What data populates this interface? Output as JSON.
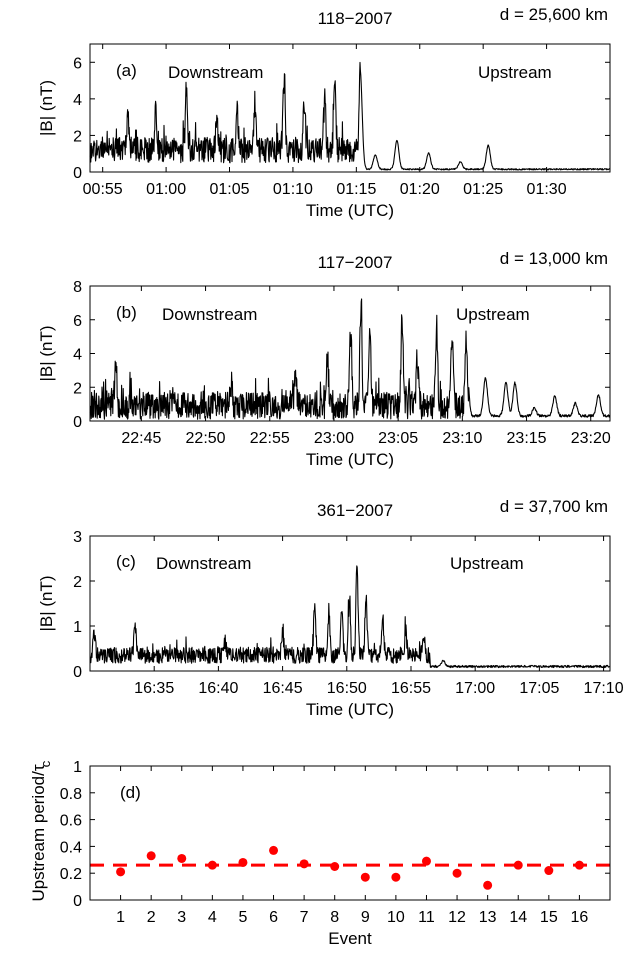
{
  "chart_data": [
    {
      "type": "line",
      "panel": "(a)",
      "title": "118−2007",
      "distance": "d = 25,600 km",
      "region_labels": [
        "Downstream",
        "Upstream"
      ],
      "xlabel": "Time (UTC)",
      "ylabel": "|B| (nT)",
      "xlim_minutes": [
        54.0,
        95.0
      ],
      "ylim": [
        0,
        7
      ],
      "yticks": [
        0,
        2,
        4,
        6
      ],
      "xtick_values": [
        55,
        60,
        65,
        70,
        75,
        80,
        85,
        90
      ],
      "xtick_labels": [
        "00:55",
        "01:00",
        "01:05",
        "01:10",
        "01:15",
        "01:20",
        "01:25",
        "01:30"
      ],
      "transition_minute": 75.3,
      "downstream_level": 1.2,
      "downstream_noise": 0.7,
      "upstream_base": 0.15,
      "peaks": [
        [
          57.0,
          2.6
        ],
        [
          59.2,
          2.9
        ],
        [
          61.6,
          4.3
        ],
        [
          64.0,
          2.7
        ],
        [
          65.6,
          3.3
        ],
        [
          67.0,
          3.5
        ],
        [
          69.3,
          5.3
        ],
        [
          70.9,
          3.3
        ],
        [
          72.5,
          3.9
        ],
        [
          73.3,
          4.8
        ],
        [
          75.3,
          6.0
        ],
        [
          76.5,
          1.4
        ],
        [
          78.2,
          2.2
        ],
        [
          80.7,
          1.5
        ],
        [
          83.2,
          1.0
        ],
        [
          85.4,
          1.9
        ]
      ],
      "seed": 11
    },
    {
      "type": "line",
      "panel": "(b)",
      "title": "117−2007",
      "distance": "d = 13,000 km",
      "region_labels": [
        "Downstream",
        "Upstream"
      ],
      "xlabel": "Time (UTC)",
      "ylabel": "|B| (nT)",
      "xlim_minutes": [
        1361.0,
        1401.5
      ],
      "ylim": [
        0,
        8
      ],
      "yticks": [
        0,
        2,
        4,
        6,
        8
      ],
      "xtick_values": [
        1365,
        1370,
        1375,
        1380,
        1385,
        1390,
        1395,
        1400
      ],
      "xtick_labels": [
        "22:45",
        "22:50",
        "22:55",
        "23:00",
        "23:05",
        "23:10",
        "23:15",
        "23:20"
      ],
      "transition_minute": 1390.5,
      "downstream_level": 0.9,
      "downstream_noise": 0.8,
      "upstream_base": 0.3,
      "peaks": [
        [
          1363.0,
          3.2
        ],
        [
          1372.0,
          2.0
        ],
        [
          1377.0,
          2.6
        ],
        [
          1379.5,
          3.5
        ],
        [
          1381.3,
          5.7
        ],
        [
          1382.1,
          7.6
        ],
        [
          1382.8,
          4.8
        ],
        [
          1385.3,
          6.3
        ],
        [
          1386.5,
          3.6
        ],
        [
          1388.0,
          5.4
        ],
        [
          1389.2,
          4.9
        ],
        [
          1390.3,
          4.5
        ],
        [
          1391.8,
          2.7
        ],
        [
          1393.4,
          2.4
        ],
        [
          1394.1,
          2.4
        ],
        [
          1395.6,
          0.9
        ],
        [
          1397.2,
          1.6
        ],
        [
          1398.8,
          1.2
        ],
        [
          1400.6,
          1.7
        ]
      ],
      "seed": 23
    },
    {
      "type": "line",
      "panel": "(c)",
      "title": "361−2007",
      "distance": "d = 37,700 km",
      "region_labels": [
        "Downstream",
        "Upstream"
      ],
      "xlabel": "Time (UTC)",
      "ylabel": "|B| (nT)",
      "xlim_minutes": [
        990.0,
        1030.5
      ],
      "ylim": [
        0,
        3
      ],
      "yticks": [
        0,
        1,
        2,
        3
      ],
      "xtick_values": [
        995,
        1000,
        1005,
        1010,
        1015,
        1020,
        1025,
        1030
      ],
      "xtick_labels": [
        "16:35",
        "16:40",
        "16:45",
        "16:50",
        "16:55",
        "17:00",
        "17:05",
        "17:10"
      ],
      "transition_minute": 1016.5,
      "downstream_level": 0.35,
      "downstream_noise": 0.18,
      "upstream_base": 0.1,
      "peaks": [
        [
          990.3,
          0.75
        ],
        [
          993.5,
          0.92
        ],
        [
          1000.5,
          0.6
        ],
        [
          1005.0,
          0.8
        ],
        [
          1007.5,
          1.3
        ],
        [
          1008.6,
          1.25
        ],
        [
          1009.6,
          1.3
        ],
        [
          1010.2,
          1.55
        ],
        [
          1010.8,
          2.3
        ],
        [
          1011.5,
          1.6
        ],
        [
          1012.8,
          1.0
        ],
        [
          1014.6,
          0.8
        ],
        [
          1016.0,
          0.6
        ],
        [
          1017.5,
          0.3
        ]
      ],
      "seed": 37
    },
    {
      "type": "scatter",
      "panel": "(d)",
      "xlabel": "Event",
      "ylabel": "Upstream period/τ",
      "ylabel_sub": "c",
      "xlim": [
        0,
        17
      ],
      "ylim": [
        0,
        1
      ],
      "yticks": [
        0,
        0.2,
        0.4,
        0.6,
        0.8,
        1
      ],
      "ytick_labels": [
        "0",
        "0.2",
        "0.4",
        "0.6",
        "0.8",
        "1"
      ],
      "x": [
        1,
        2,
        3,
        4,
        5,
        6,
        7,
        8,
        9,
        10,
        11,
        12,
        13,
        14,
        15,
        16
      ],
      "y": [
        0.21,
        0.33,
        0.31,
        0.26,
        0.28,
        0.37,
        0.27,
        0.25,
        0.17,
        0.17,
        0.29,
        0.2,
        0.11,
        0.26,
        0.22,
        0.26
      ],
      "mean_line": 0.26,
      "color": "#ff0000"
    }
  ]
}
